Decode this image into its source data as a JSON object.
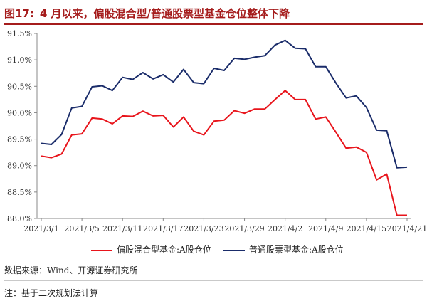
{
  "figure": {
    "label": "图17:",
    "title": "4 月以来，偏股混合型/普通股票型基金仓位整体下降"
  },
  "chart_data": {
    "type": "line",
    "y_ticks": [
      "91.5%",
      "91.0%",
      "90.5%",
      "90.0%",
      "89.5%",
      "89.0%",
      "88.5%",
      "88.0%"
    ],
    "ylim": [
      88.0,
      91.5
    ],
    "x_tick_labels": [
      "2021/3/1",
      "2021/3/5",
      "2021/3/11",
      "2021/3/17",
      "2021/3/23",
      "2021/3/29",
      "2021/4/2",
      "2021/4/9",
      "2021/4/15",
      "2021/4/21"
    ],
    "x_tick_indices": [
      0,
      4,
      8,
      12,
      16,
      20,
      24,
      28,
      32,
      36
    ],
    "grid": false,
    "legend_position": "bottom",
    "series": [
      {
        "name": "偏股混合型基金:A股仓位",
        "color": "#e8141b",
        "values": [
          89.18,
          89.15,
          89.22,
          89.58,
          89.6,
          89.9,
          89.88,
          89.79,
          89.94,
          89.93,
          90.03,
          89.94,
          89.95,
          89.73,
          89.92,
          89.65,
          89.58,
          89.84,
          89.86,
          90.04,
          89.99,
          90.07,
          90.07,
          90.25,
          90.42,
          90.25,
          90.25,
          89.88,
          89.92,
          89.63,
          89.33,
          89.35,
          89.25,
          88.73,
          88.84,
          88.06,
          88.06
        ]
      },
      {
        "name": "普通股票型基金:A股仓位",
        "color": "#1a2c6a",
        "values": [
          89.42,
          89.4,
          89.59,
          90.09,
          90.12,
          90.49,
          90.51,
          90.42,
          90.67,
          90.63,
          90.76,
          90.64,
          90.72,
          90.58,
          90.82,
          90.57,
          90.55,
          90.84,
          90.8,
          91.03,
          91.01,
          91.05,
          91.08,
          91.28,
          91.37,
          91.22,
          91.21,
          90.87,
          90.87,
          90.56,
          90.28,
          90.32,
          90.1,
          89.67,
          89.66,
          88.96,
          88.97
        ]
      }
    ]
  },
  "source": "数据来源：Wind、开源证券研究所",
  "note": "注：基于二次规划法计算"
}
